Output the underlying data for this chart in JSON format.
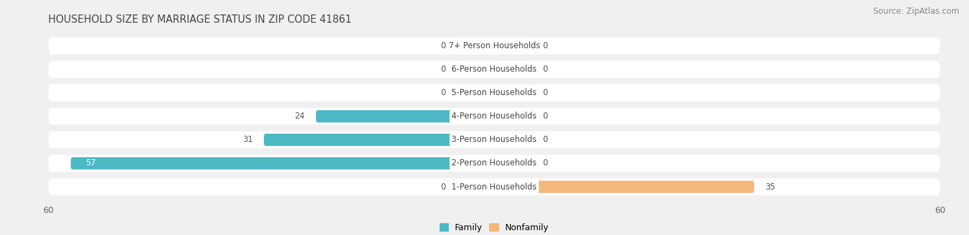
{
  "title": "HOUSEHOLD SIZE BY MARRIAGE STATUS IN ZIP CODE 41861",
  "source": "Source: ZipAtlas.com",
  "categories": [
    "7+ Person Households",
    "6-Person Households",
    "5-Person Households",
    "4-Person Households",
    "3-Person Households",
    "2-Person Households",
    "1-Person Households"
  ],
  "family_values": [
    0,
    0,
    0,
    24,
    31,
    57,
    0
  ],
  "nonfamily_values": [
    0,
    0,
    0,
    0,
    0,
    0,
    35
  ],
  "family_color": "#4cb8c4",
  "nonfamily_color": "#f5b87a",
  "xlim": [
    -60,
    60
  ],
  "x_ticks": [
    -60,
    60
  ],
  "x_tick_labels": [
    "60",
    "60"
  ],
  "background_color": "#f0f0f0",
  "row_bg_color": "#ffffff",
  "title_fontsize": 10.5,
  "source_fontsize": 8.5,
  "label_fontsize": 8.5,
  "cat_fontsize": 8.5,
  "tick_fontsize": 9,
  "legend_fontsize": 9,
  "zero_stub": 5
}
